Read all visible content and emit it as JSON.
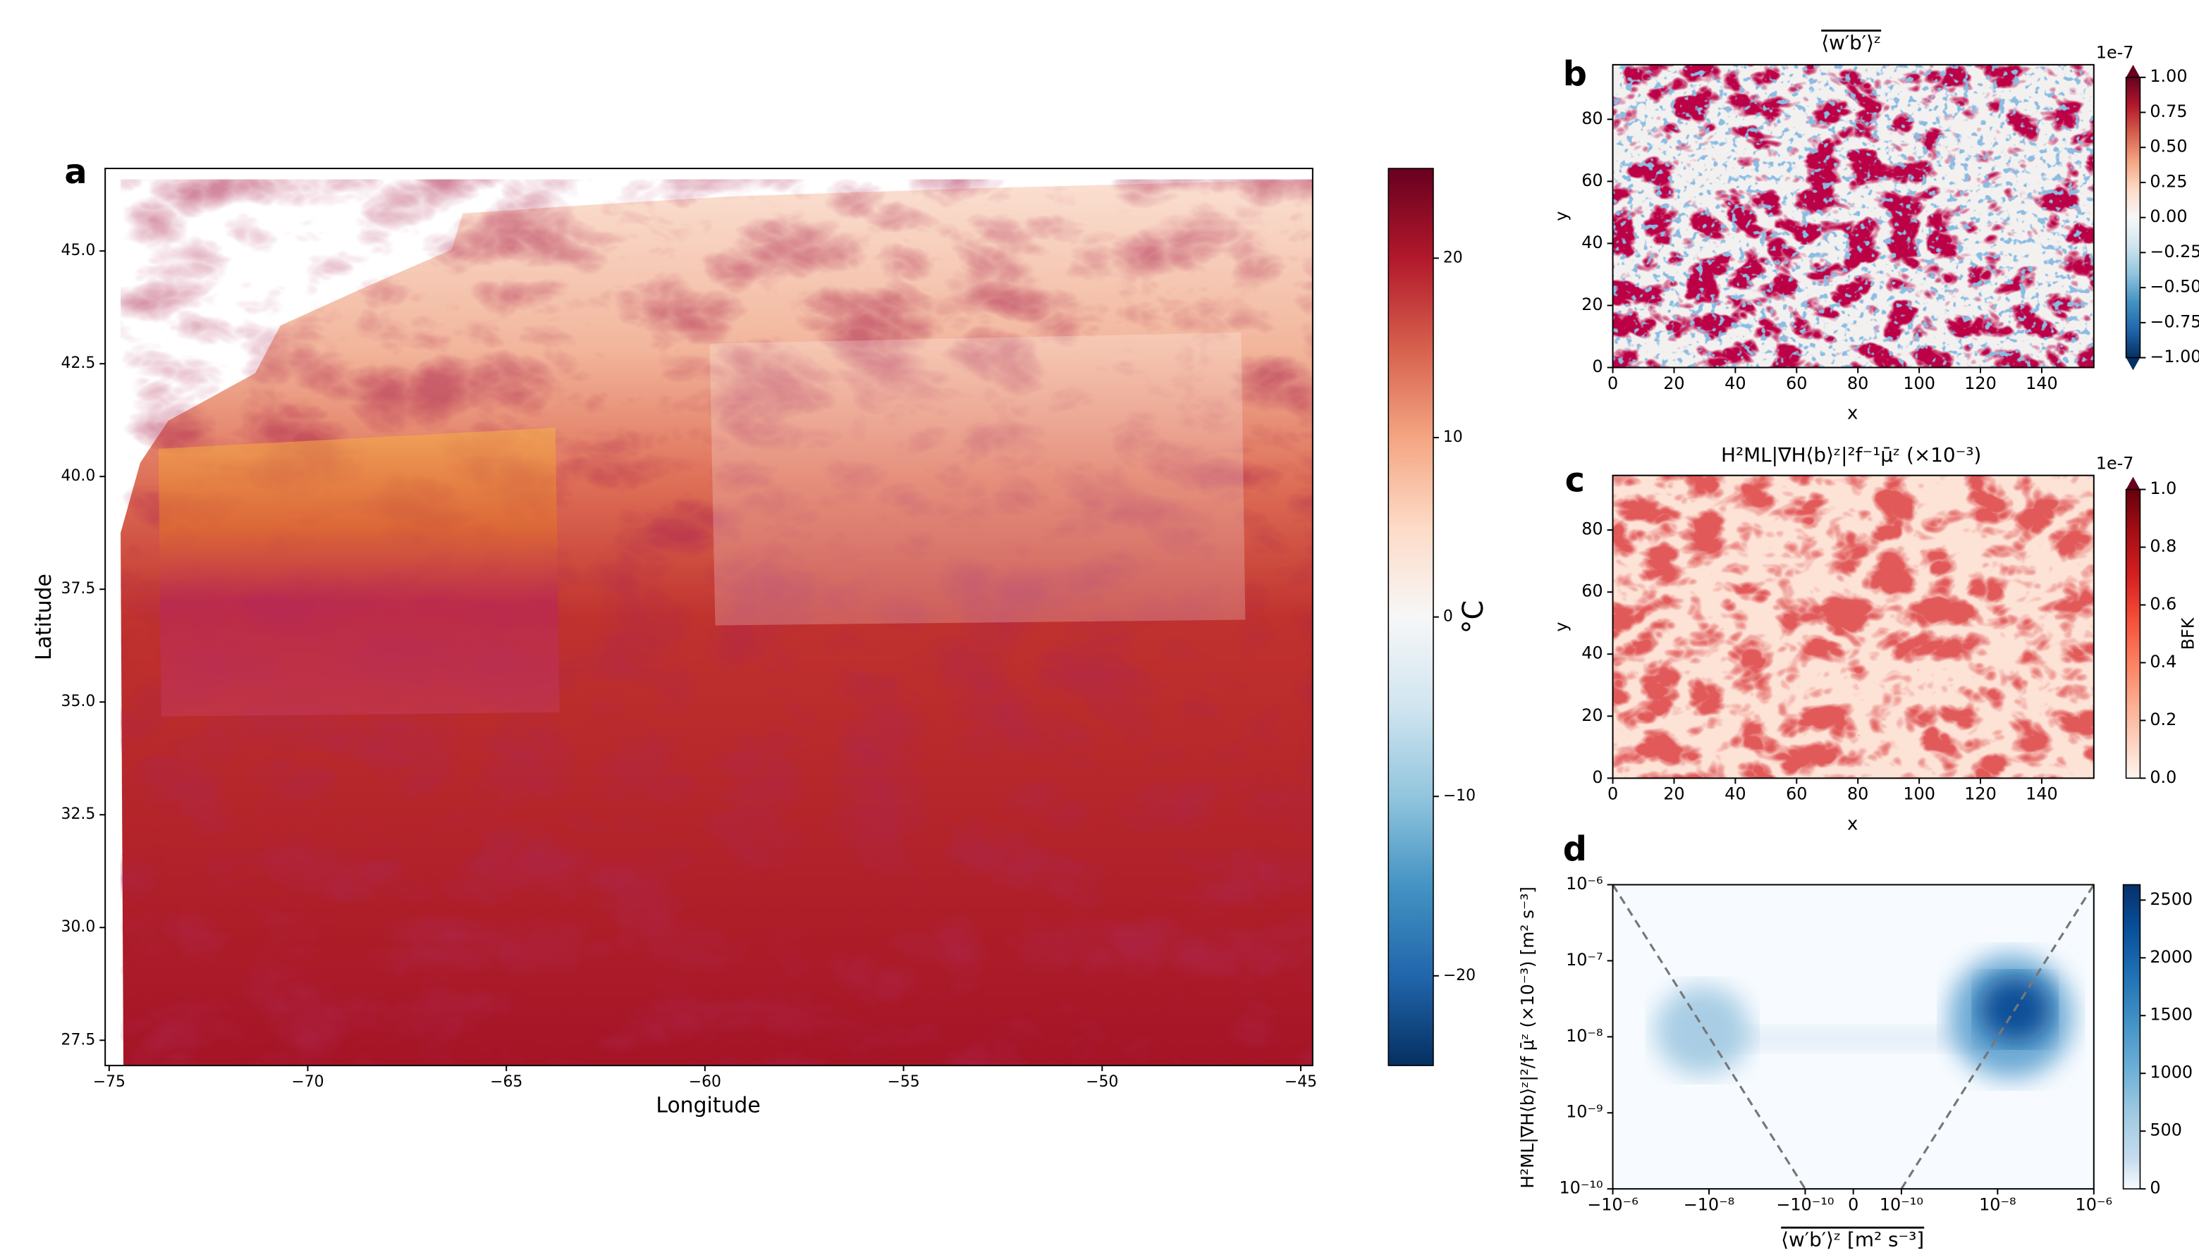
{
  "chart_data": [
    {
      "type": "map",
      "label": "a",
      "xlabel": "Longitude",
      "ylabel": "Latitude",
      "xlim": [
        -75.1,
        -44.7
      ],
      "ylim": [
        26.94,
        46.83
      ],
      "xticks": [
        {
          "value": -75,
          "label": "−75"
        },
        {
          "value": -70,
          "label": "−70"
        },
        {
          "value": -65,
          "label": "−65"
        },
        {
          "value": -60,
          "label": "−60"
        },
        {
          "value": -55,
          "label": "−55"
        },
        {
          "value": -50,
          "label": "−50"
        },
        {
          "value": -45,
          "label": "−45"
        }
      ],
      "yticks": [
        {
          "value": 27.5,
          "label": "27.5"
        },
        {
          "value": 30,
          "label": "30.0"
        },
        32.5,
        {
          "value": 35,
          "label": "35.0"
        },
        37.5,
        {
          "value": 40,
          "label": "40.0"
        },
        42.5,
        {
          "value": 45,
          "label": "45.0"
        }
      ],
      "colorbar": {
        "label": "°C",
        "cmap": "RdBu_r",
        "lim": [
          -25,
          25
        ],
        "ticks": [
          20,
          10,
          0,
          {
            "value": -10,
            "label": "−10"
          },
          {
            "value": -20,
            "label": "−20"
          }
        ]
      }
    },
    {
      "type": "heatmap",
      "label": "b",
      "title": "⟨w′b′⟩ᶻ",
      "xlabel": "x",
      "ylabel": "y",
      "xlim": [
        0,
        157
      ],
      "ylim": [
        0,
        97.6
      ],
      "xticks": [
        0,
        20,
        40,
        60,
        80,
        100,
        120,
        140
      ],
      "yticks": [
        0,
        20,
        40,
        60,
        80
      ],
      "colorbar": {
        "cmap": "RdBu_r",
        "lim": [
          -1,
          1
        ],
        "offset": "1e-7",
        "extend": "both",
        "ticks": [
          {
            "value": 1,
            "label": "1.00"
          },
          0.75,
          {
            "value": 0.5,
            "label": "0.50"
          },
          0.25,
          {
            "value": 0,
            "label": "0.00"
          },
          {
            "value": -0.25,
            "label": "−0.25"
          },
          {
            "value": -0.5,
            "label": "−0.50"
          },
          {
            "value": -0.75,
            "label": "−0.75"
          },
          {
            "value": -1,
            "label": "−1.00"
          }
        ]
      }
    },
    {
      "type": "heatmap",
      "label": "c",
      "title": "H²ML|∇H⟨b⟩ᶻ|²f⁻¹μ̄ᶻ (×10⁻³)",
      "xlabel": "x",
      "ylabel": "y",
      "xlim": [
        0,
        157
      ],
      "ylim": [
        0,
        97.6
      ],
      "xticks": [
        0,
        20,
        40,
        60,
        80,
        100,
        120,
        140
      ],
      "yticks": [
        0,
        20,
        40,
        60,
        80
      ],
      "colorbar": {
        "label": "BFK",
        "cmap": "Reds",
        "lim": [
          0,
          1
        ],
        "offset": "1e-7",
        "extend": "max",
        "ticks": [
          {
            "value": 1,
            "label": "1.0"
          },
          0.8,
          0.6,
          0.4,
          0.2,
          {
            "value": 0,
            "label": "0.0"
          }
        ]
      }
    },
    {
      "type": "hist2d",
      "label": "d",
      "xlabel": "⟨w′b′⟩ᶻ [m² s⁻³]",
      "ylabel": "H²ML|∇H⟨b⟩ᶻ|²/f μ̄ᶻ (×10⁻³) [m² s⁻³]",
      "xscale": "symlog",
      "linthresh": 1e-10,
      "yscale": "log",
      "xlim": [
        -1e-06,
        1e-06
      ],
      "ylim": [
        1e-10,
        1e-06
      ],
      "xticks": [
        {
          "value": -1e-06,
          "label": "−10⁻⁶"
        },
        {
          "value": -1e-08,
          "label": "−10⁻⁸"
        },
        {
          "value": -1e-10,
          "label": "−10⁻¹⁰"
        },
        0,
        {
          "value": 1e-10,
          "label": "10⁻¹⁰"
        },
        {
          "value": 1e-08,
          "label": "10⁻⁸"
        },
        {
          "value": 1e-06,
          "label": "10⁻⁶"
        }
      ],
      "yticks": [
        {
          "value": 1e-10,
          "label": "10⁻¹⁰"
        },
        {
          "value": 1e-09,
          "label": "10⁻⁹"
        },
        {
          "value": 1e-08,
          "label": "10⁻⁸"
        },
        {
          "value": 1e-07,
          "label": "10⁻⁷"
        },
        {
          "value": 1e-06,
          "label": "10⁻⁶"
        }
      ],
      "colorbar": {
        "cmap": "Blues",
        "lim": [
          0,
          2633
        ],
        "ticks": [
          0,
          500,
          1000,
          1500,
          2000,
          2500
        ]
      }
    }
  ]
}
